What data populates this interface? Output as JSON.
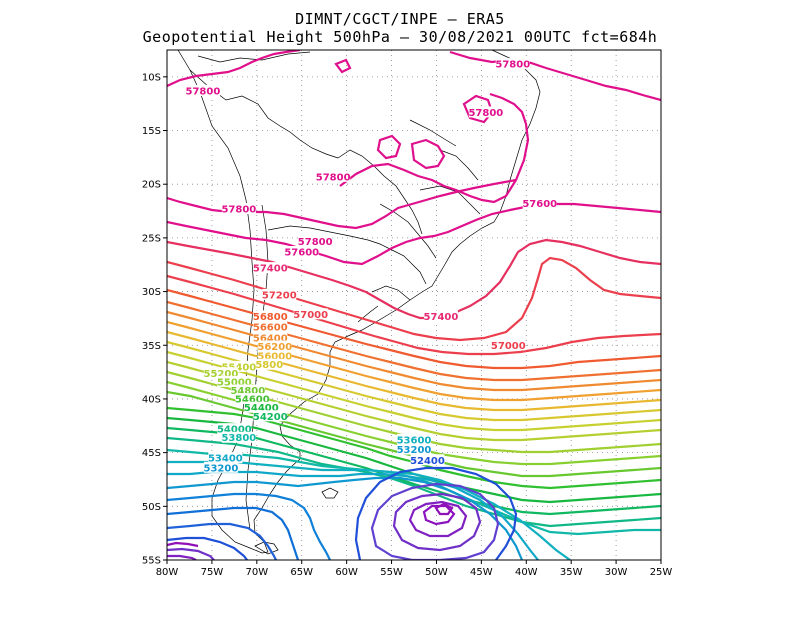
{
  "title": {
    "line1": "DIMNT/CGCT/INPE –  ERA5",
    "line2": "Geopotential Height 500hPa –  30/08/2021 00UTC fct=684h"
  },
  "map": {
    "lon_range": [
      -80,
      -25
    ],
    "lat_range": [
      -55,
      -7.5
    ],
    "lat_ticks": [
      {
        "value": -10,
        "label": "10S"
      },
      {
        "value": -15,
        "label": "15S"
      },
      {
        "value": -20,
        "label": "20S"
      },
      {
        "value": -25,
        "label": "25S"
      },
      {
        "value": -30,
        "label": "30S"
      },
      {
        "value": -35,
        "label": "35S"
      },
      {
        "value": -40,
        "label": "40S"
      },
      {
        "value": -45,
        "label": "45S"
      },
      {
        "value": -50,
        "label": "50S"
      },
      {
        "value": -55,
        "label": "55S"
      }
    ],
    "lon_ticks": [
      {
        "value": -80,
        "label": "80W"
      },
      {
        "value": -75,
        "label": "75W"
      },
      {
        "value": -70,
        "label": "70W"
      },
      {
        "value": -65,
        "label": "65W"
      },
      {
        "value": -60,
        "label": "60W"
      },
      {
        "value": -55,
        "label": "55W"
      },
      {
        "value": -50,
        "label": "50W"
      },
      {
        "value": -45,
        "label": "45W"
      },
      {
        "value": -40,
        "label": "40W"
      },
      {
        "value": -35,
        "label": "35W"
      },
      {
        "value": -30,
        "label": "30W"
      },
      {
        "value": -25,
        "label": "25W"
      }
    ],
    "grid": "dotted",
    "contour_interval": 200,
    "contour_labels": [
      {
        "text": "57800",
        "lon": -76,
        "lat": -11.5,
        "color": "#e0108c"
      },
      {
        "text": "57800",
        "lon": -44.5,
        "lat": -13.5,
        "color": "#e0108c"
      },
      {
        "text": "57800",
        "lon": -41.5,
        "lat": -9.0,
        "color": "#e0108c"
      },
      {
        "text": "57800",
        "lon": -61.5,
        "lat": -19.5,
        "color": "#e0108c"
      },
      {
        "text": "57800",
        "lon": -72.0,
        "lat": -22.5,
        "color": "#e0108c"
      },
      {
        "text": "57800",
        "lon": -63.5,
        "lat": -25.5,
        "color": "#e0108c"
      },
      {
        "text": "57600",
        "lon": -65.0,
        "lat": -26.5,
        "color": "#e0108c"
      },
      {
        "text": "57600",
        "lon": -38.5,
        "lat": -22.0,
        "color": "#e0108c"
      },
      {
        "text": "57400",
        "lon": -68.5,
        "lat": -28.0,
        "color": "#e62a74"
      },
      {
        "text": "57400",
        "lon": -49.5,
        "lat": -32.5,
        "color": "#e62a74"
      },
      {
        "text": "57200",
        "lon": -67.5,
        "lat": -30.5,
        "color": "#ec3f4e"
      },
      {
        "text": "57000",
        "lon": -64.0,
        "lat": -32.3,
        "color": "#ec3f4e"
      },
      {
        "text": "57000",
        "lon": -42.0,
        "lat": -35.2,
        "color": "#ec3f4e"
      },
      {
        "text": "56800",
        "lon": -68.5,
        "lat": -32.5,
        "color": "#f05a30"
      },
      {
        "text": "56600",
        "lon": -68.5,
        "lat": -33.5,
        "color": "#f07030"
      },
      {
        "text": "56400",
        "lon": -68.5,
        "lat": -34.5,
        "color": "#f08a30"
      },
      {
        "text": "56200",
        "lon": -68.0,
        "lat": -35.3,
        "color": "#f0a030"
      },
      {
        "text": "56000",
        "lon": -68.0,
        "lat": -36.2,
        "color": "#e8b830"
      },
      {
        "text": "55800",
        "lon": -69.0,
        "lat": -37.0,
        "color": "#d8c830"
      },
      {
        "text": "55400",
        "lon": -72.0,
        "lat": -37.2,
        "color": "#c0d030"
      },
      {
        "text": "55200",
        "lon": -74.0,
        "lat": -37.8,
        "color": "#a8d030"
      },
      {
        "text": "55000",
        "lon": -72.5,
        "lat": -38.6,
        "color": "#90d030"
      },
      {
        "text": "54800",
        "lon": -71.0,
        "lat": -39.4,
        "color": "#70c830"
      },
      {
        "text": "54600",
        "lon": -70.5,
        "lat": -40.2,
        "color": "#40c030"
      },
      {
        "text": "54400",
        "lon": -69.5,
        "lat": -41.0,
        "color": "#18b840"
      },
      {
        "text": "54200",
        "lon": -68.5,
        "lat": -41.8,
        "color": "#10b860"
      },
      {
        "text": "54000",
        "lon": -72.5,
        "lat": -43.0,
        "color": "#10b888"
      },
      {
        "text": "53800",
        "lon": -72.0,
        "lat": -43.8,
        "color": "#10b8a8"
      },
      {
        "text": "53600",
        "lon": -52.5,
        "lat": -44.0,
        "color": "#10b0c0"
      },
      {
        "text": "53400",
        "lon": -73.5,
        "lat": -45.7,
        "color": "#10a8c8"
      },
      {
        "text": "53200",
        "lon": -52.5,
        "lat": -44.9,
        "color": "#1098d0"
      },
      {
        "text": "53200",
        "lon": -74.0,
        "lat": -46.6,
        "color": "#1098d0"
      },
      {
        "text": "52400",
        "lon": -51.0,
        "lat": -45.9,
        "color": "#2050d8"
      }
    ]
  }
}
